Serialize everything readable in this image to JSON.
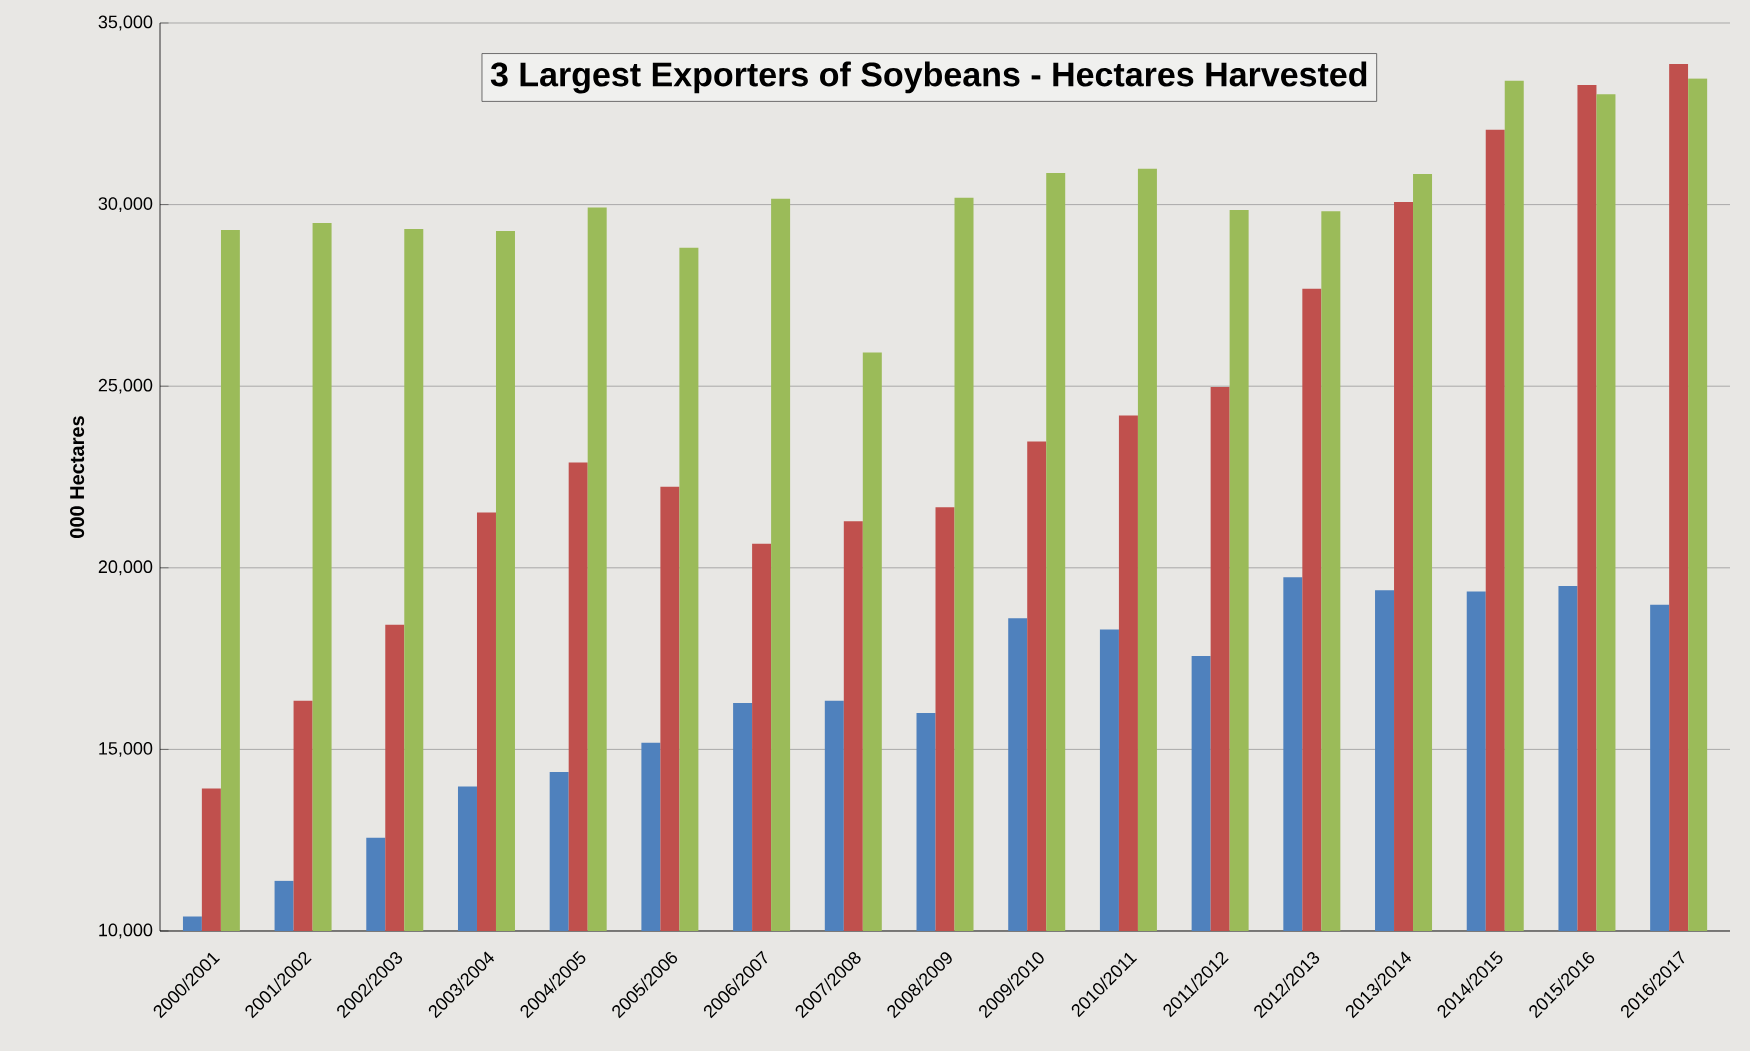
{
  "chart_data": {
    "type": "bar",
    "title": "3 Largest Exporters of Soybeans - Hectares Harvested",
    "ylabel": "000  Hectares",
    "categories": [
      "2000/2001",
      "2001/2002",
      "2002/2003",
      "2003/2004",
      "2004/2005",
      "2005/2006",
      "2006/2007",
      "2007/2008",
      "2008/2009",
      "2009/2010",
      "2010/2011",
      "2011/2012",
      "2012/2013",
      "2013/2014",
      "2014/2015",
      "2015/2016",
      "2016/2017"
    ],
    "series": [
      {
        "color": "#4f81bd",
        "values": [
          10400,
          11380,
          12570,
          13980,
          14380,
          15180,
          16280,
          16340,
          16000,
          18610,
          18300,
          17570,
          19740,
          19380,
          19350,
          19500,
          18980
        ]
      },
      {
        "color": "#c0504d",
        "values": [
          13920,
          16340,
          18430,
          21520,
          22900,
          22230,
          20660,
          21280,
          21670,
          23480,
          24190,
          24980,
          27680,
          30070,
          32060,
          33290,
          33870
        ]
      },
      {
        "color": "#9bbb59",
        "values": [
          29300,
          29490,
          29330,
          29270,
          29920,
          28810,
          30160,
          25930,
          30190,
          30870,
          30990,
          29850,
          29820,
          30840,
          33410,
          33040,
          33470
        ]
      }
    ],
    "ylim": [
      10000,
      35000
    ],
    "yticks": [
      {
        "value": 10000,
        "label": "10,000"
      },
      {
        "value": 15000,
        "label": "15,000"
      },
      {
        "value": 20000,
        "label": "20,000"
      },
      {
        "value": 25000,
        "label": "25,000"
      },
      {
        "value": 30000,
        "label": "30,000"
      },
      {
        "value": 35000,
        "label": "35,000"
      }
    ],
    "grid": "y"
  }
}
